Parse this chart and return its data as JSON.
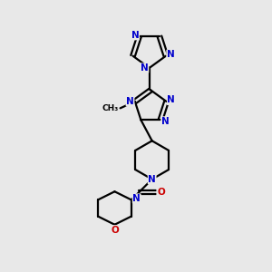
{
  "background_color": "#e8e8e8",
  "bond_color": "#000000",
  "nitrogen_color": "#0000cc",
  "oxygen_color": "#cc0000",
  "line_width": 1.6,
  "figsize": [
    3.0,
    3.0
  ],
  "dpi": 100,
  "xlim": [
    0,
    10
  ],
  "ylim": [
    0,
    10
  ]
}
